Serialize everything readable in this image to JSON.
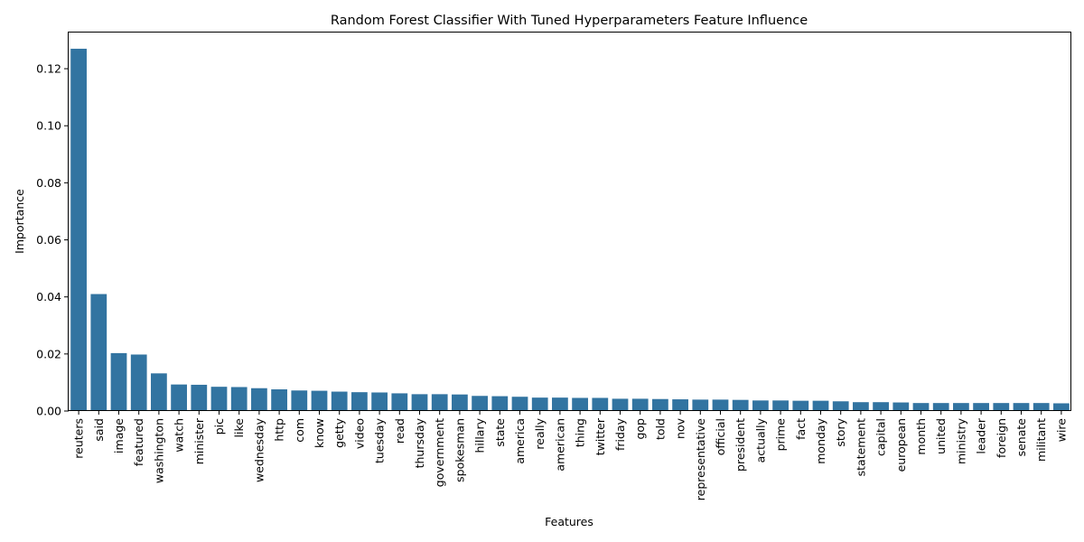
{
  "chart_data": {
    "type": "bar",
    "title": "Random Forest Classifier With Tuned Hyperparameters Feature Influence",
    "xlabel": "Features",
    "ylabel": "Importance",
    "ylim": [
      0,
      0.133
    ],
    "yticks": [
      0.0,
      0.02,
      0.04,
      0.06,
      0.08,
      0.1,
      0.12
    ],
    "ytick_labels": [
      "0.00",
      "0.02",
      "0.04",
      "0.06",
      "0.08",
      "0.10",
      "0.12"
    ],
    "bar_color": "#3274a1",
    "grid": false,
    "categories": [
      "reuters",
      "said",
      "image",
      "featured",
      "washington",
      "watch",
      "minister",
      "pic",
      "like",
      "wednesday",
      "http",
      "com",
      "know",
      "getty",
      "video",
      "tuesday",
      "read",
      "thursday",
      "government",
      "spokesman",
      "hillary",
      "state",
      "america",
      "really",
      "american",
      "thing",
      "twitter",
      "friday",
      "gop",
      "told",
      "nov",
      "representative",
      "official",
      "president",
      "actually",
      "prime",
      "fact",
      "monday",
      "story",
      "statement",
      "capital",
      "european",
      "month",
      "united",
      "ministry",
      "leader",
      "foreign",
      "senate",
      "militant",
      "wire"
    ],
    "values": [
      0.127,
      0.041,
      0.0203,
      0.0198,
      0.0132,
      0.0093,
      0.0092,
      0.0085,
      0.0084,
      0.008,
      0.0076,
      0.0072,
      0.0071,
      0.0068,
      0.0066,
      0.0065,
      0.0062,
      0.0059,
      0.0059,
      0.0058,
      0.0053,
      0.0052,
      0.005,
      0.0047,
      0.0047,
      0.0046,
      0.0046,
      0.0043,
      0.0043,
      0.0042,
      0.0041,
      0.004,
      0.004,
      0.0039,
      0.0037,
      0.0037,
      0.0036,
      0.0036,
      0.0034,
      0.0031,
      0.0031,
      0.003,
      0.0028,
      0.0028,
      0.0028,
      0.0028,
      0.0028,
      0.0028,
      0.0028,
      0.0027
    ]
  }
}
